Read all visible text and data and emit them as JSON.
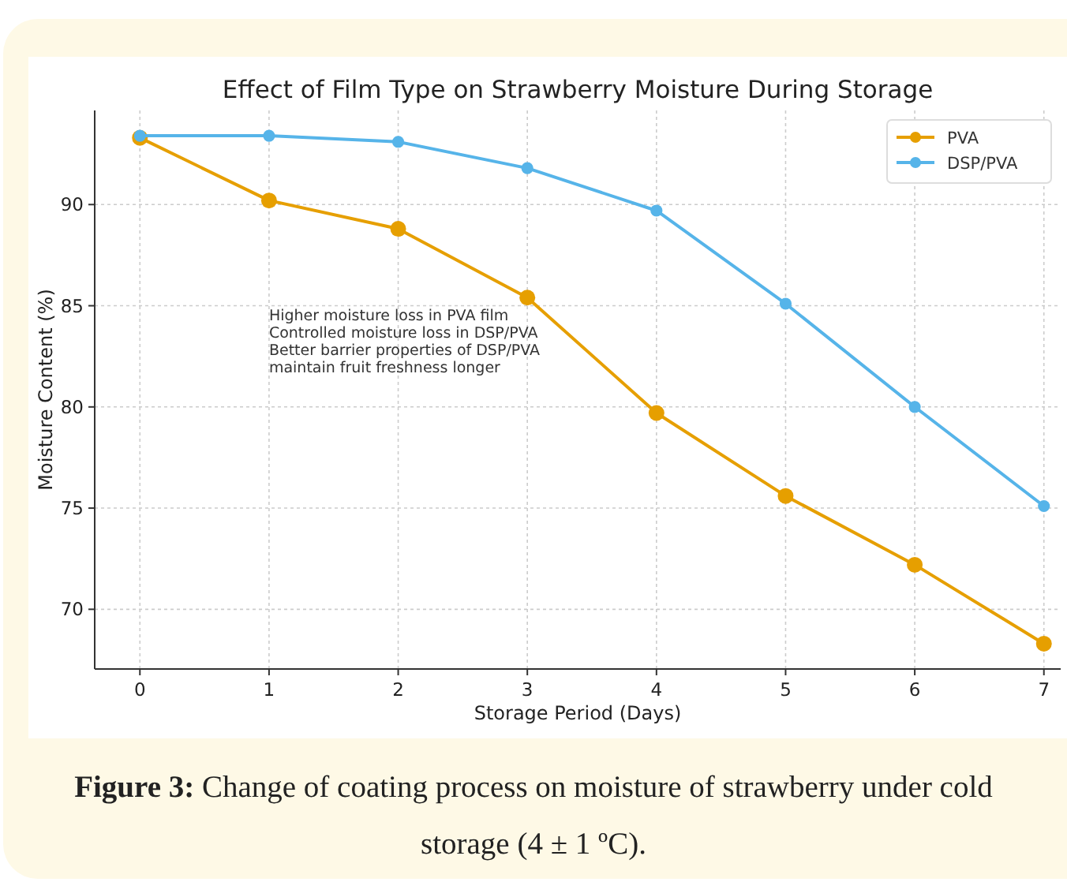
{
  "chart_data": {
    "type": "line",
    "title": "Effect of Film Type on Strawberry Moisture During Storage",
    "xlabel": "Storage Period (Days)",
    "ylabel": "Moisture Content (%)",
    "x": [
      0,
      1,
      2,
      3,
      4,
      5,
      6,
      7
    ],
    "series": [
      {
        "name": "PVA",
        "color": "#e69f00",
        "values": [
          93.3,
          90.2,
          88.8,
          85.4,
          79.7,
          75.6,
          72.2,
          68.3
        ]
      },
      {
        "name": "DSP/PVA",
        "color": "#56b4e9",
        "values": [
          93.4,
          93.4,
          93.1,
          91.8,
          89.7,
          85.1,
          80.0,
          75.1
        ]
      }
    ],
    "xlim": [
      -0.35,
      7.13
    ],
    "xticks": [
      0,
      1,
      2,
      3,
      4,
      5,
      6,
      7
    ],
    "ylim": [
      67.05,
      94.65
    ],
    "yticks": [
      70,
      75,
      80,
      85,
      90
    ],
    "grid": true,
    "legend": "top right",
    "marker": "circle",
    "line_style": "solid",
    "annotations": [
      "Higher moisture loss in PVA film",
      "Controlled moisture loss in DSP/PVA",
      "Better barrier properties of DSP/PVA",
      "maintain fruit freshness longer",
      "Figure 3: Change of coating process on moisture of strawberry under cold storage (4 ± 1 ºC)."
    ]
  }
}
